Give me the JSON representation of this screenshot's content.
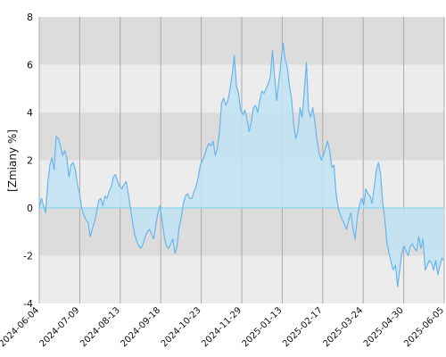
{
  "chart_data": {
    "type": "area",
    "title": "",
    "xlabel": "",
    "ylabel": "[Zmiany %]",
    "ylim": [
      -4,
      8
    ],
    "y_ticks": [
      -4,
      -2,
      0,
      2,
      4,
      6,
      8
    ],
    "x_ticks": [
      "2024-06-04",
      "2024-07-09",
      "2024-08-13",
      "2024-09-18",
      "2024-10-23",
      "2024-11-29",
      "2025-01-13",
      "2025-02-17",
      "2025-03-24",
      "2025-04-30",
      "2025-06-05"
    ],
    "grid": true,
    "colors": {
      "line": "#6ab4ec",
      "fill_pos": "#bfe3f3",
      "fill_neg": "#bfe3f3",
      "band_dark": "#dcdcdc",
      "band_light": "#ececec",
      "zero_line": "#7fd3e8",
      "vgrid": "#aaaaaa"
    },
    "series": [
      {
        "values": [
          0.0,
          0.4,
          0.1,
          -0.2,
          1.0,
          1.8,
          2.1,
          1.6,
          3.0,
          2.9,
          2.6,
          2.2,
          2.4,
          2.1,
          1.3,
          1.8,
          1.9,
          1.6,
          1.0,
          0.6,
          0.0,
          -0.3,
          -0.5,
          -0.6,
          -1.2,
          -0.9,
          -0.6,
          -0.2,
          0.3,
          0.4,
          0.1,
          0.5,
          0.4,
          0.7,
          0.9,
          1.3,
          1.4,
          1.1,
          0.9,
          0.8,
          1.0,
          1.1,
          0.6,
          0.0,
          -0.6,
          -1.1,
          -1.4,
          -1.6,
          -1.7,
          -1.5,
          -1.2,
          -1.0,
          -0.9,
          -1.1,
          -1.3,
          -0.7,
          -0.2,
          0.1,
          -0.6,
          -1.2,
          -1.6,
          -1.7,
          -1.5,
          -1.3,
          -1.9,
          -1.6,
          -0.8,
          -0.4,
          0.2,
          0.5,
          0.6,
          0.4,
          0.4,
          0.7,
          0.9,
          1.3,
          1.8,
          2.0,
          2.2,
          2.5,
          2.7,
          2.6,
          2.8,
          2.2,
          2.5,
          3.2,
          4.4,
          4.6,
          4.3,
          4.5,
          5.0,
          5.6,
          6.4,
          5.1,
          4.8,
          4.1,
          3.9,
          4.1,
          3.7,
          3.2,
          3.6,
          4.2,
          4.3,
          4.0,
          4.5,
          4.9,
          4.8,
          5.0,
          5.2,
          5.5,
          6.6,
          5.5,
          4.5,
          5.3,
          6.1,
          6.9,
          6.2,
          5.9,
          5.1,
          4.6,
          3.5,
          2.9,
          3.2,
          4.2,
          3.8,
          4.9,
          6.1,
          4.1,
          3.8,
          4.2,
          3.6,
          2.8,
          2.3,
          2.0,
          2.2,
          2.5,
          2.8,
          2.4,
          1.7,
          1.8,
          0.6,
          0.0,
          -0.3,
          -0.5,
          -0.7,
          -0.9,
          -0.5,
          -0.2,
          -0.9,
          -1.3,
          -0.4,
          0.1,
          0.4,
          0.1,
          0.8,
          0.6,
          0.5,
          0.2,
          0.9,
          1.6,
          1.9,
          1.4,
          0.2,
          -0.5,
          -1.5,
          -1.9,
          -2.3,
          -2.6,
          -2.4,
          -3.3,
          -2.6,
          -1.9,
          -1.6,
          -1.8,
          -2.0,
          -1.6,
          -1.5,
          -1.7,
          -1.8,
          -1.2,
          -1.7,
          -1.3,
          -2.6,
          -2.4,
          -2.2,
          -2.3,
          -2.6,
          -2.2,
          -2.8,
          -2.4,
          -2.1,
          -2.2
        ]
      }
    ]
  }
}
